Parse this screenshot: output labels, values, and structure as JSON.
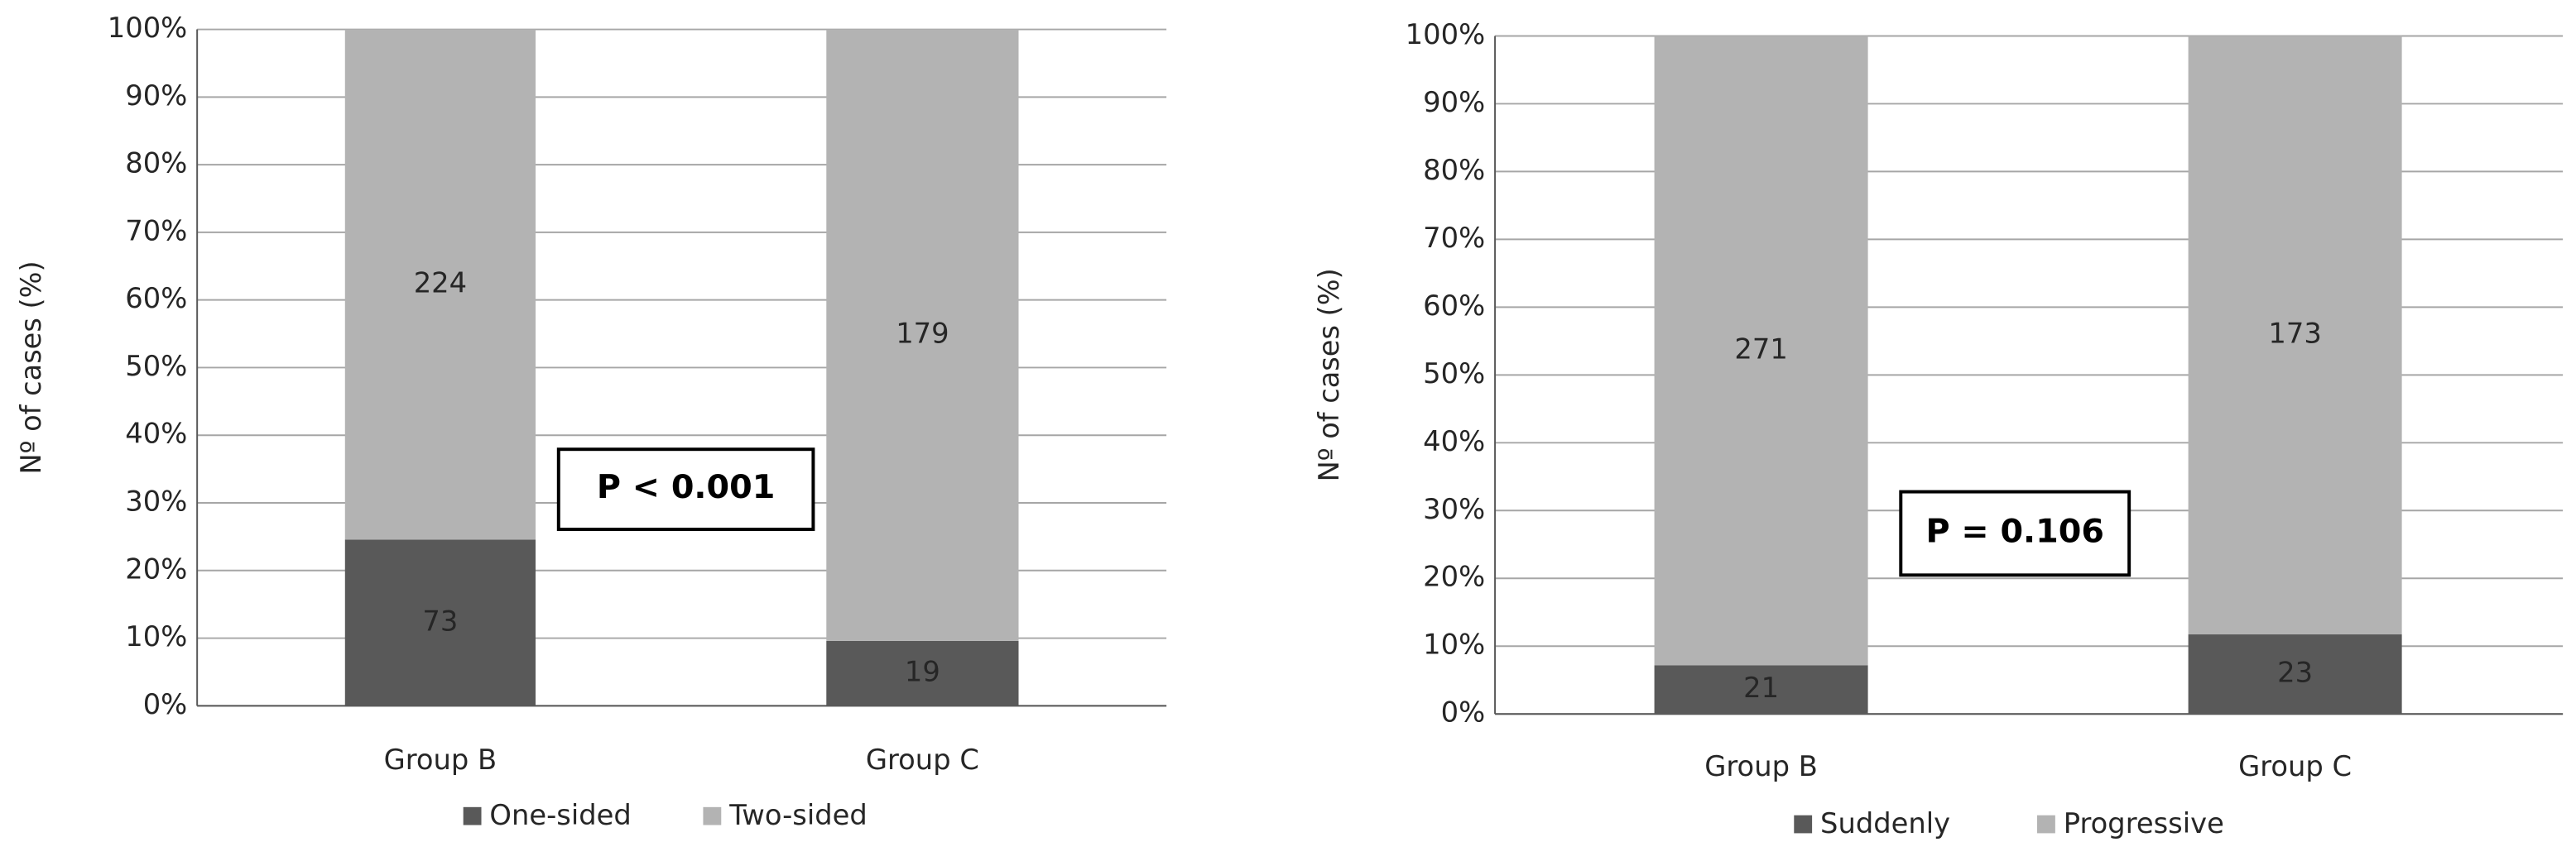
{
  "chart_data": [
    {
      "type": "bar",
      "stacked": true,
      "normalize": "percent",
      "ylabel": "Nº of cases (%)",
      "categories": [
        "Group B",
        "Group C"
      ],
      "series": [
        {
          "name": "One-sided",
          "color": "#595959",
          "values": [
            73,
            19
          ]
        },
        {
          "name": "Two-sided",
          "color": "#b3b3b3",
          "values": [
            224,
            179
          ]
        }
      ],
      "ylim": [
        0,
        100
      ],
      "yticks": [
        {
          "value": 0,
          "label": "0%"
        },
        {
          "value": 10,
          "label": "10%"
        },
        {
          "value": 20,
          "label": "20%"
        },
        {
          "value": 30,
          "label": "30%"
        },
        {
          "value": 40,
          "label": "40%"
        },
        {
          "value": 50,
          "label": "50%"
        },
        {
          "value": 60,
          "label": "60%"
        },
        {
          "value": 70,
          "label": "70%"
        },
        {
          "value": 80,
          "label": "80%"
        },
        {
          "value": 90,
          "label": "90%"
        },
        {
          "value": 100,
          "label": "100%"
        }
      ],
      "grid": true,
      "legend": "bottom",
      "annotation": "P < 0.001"
    },
    {
      "type": "bar",
      "stacked": true,
      "normalize": "percent",
      "ylabel": "Nº of cases (%)",
      "categories": [
        "Group B",
        "Group C"
      ],
      "series": [
        {
          "name": "Suddenly",
          "color": "#595959",
          "values": [
            21,
            23
          ]
        },
        {
          "name": "Progressive",
          "color": "#b3b3b3",
          "values": [
            271,
            173
          ]
        }
      ],
      "ylim": [
        0,
        100
      ],
      "yticks": [
        {
          "value": 0,
          "label": "0%"
        },
        {
          "value": 10,
          "label": "10%"
        },
        {
          "value": 20,
          "label": "20%"
        },
        {
          "value": 30,
          "label": "30%"
        },
        {
          "value": 40,
          "label": "40%"
        },
        {
          "value": 50,
          "label": "50%"
        },
        {
          "value": 60,
          "label": "60%"
        },
        {
          "value": 70,
          "label": "70%"
        },
        {
          "value": 80,
          "label": "80%"
        },
        {
          "value": 90,
          "label": "90%"
        },
        {
          "value": 100,
          "label": "100%"
        }
      ],
      "grid": true,
      "legend": "bottom",
      "annotation": "P = 0.106"
    }
  ]
}
